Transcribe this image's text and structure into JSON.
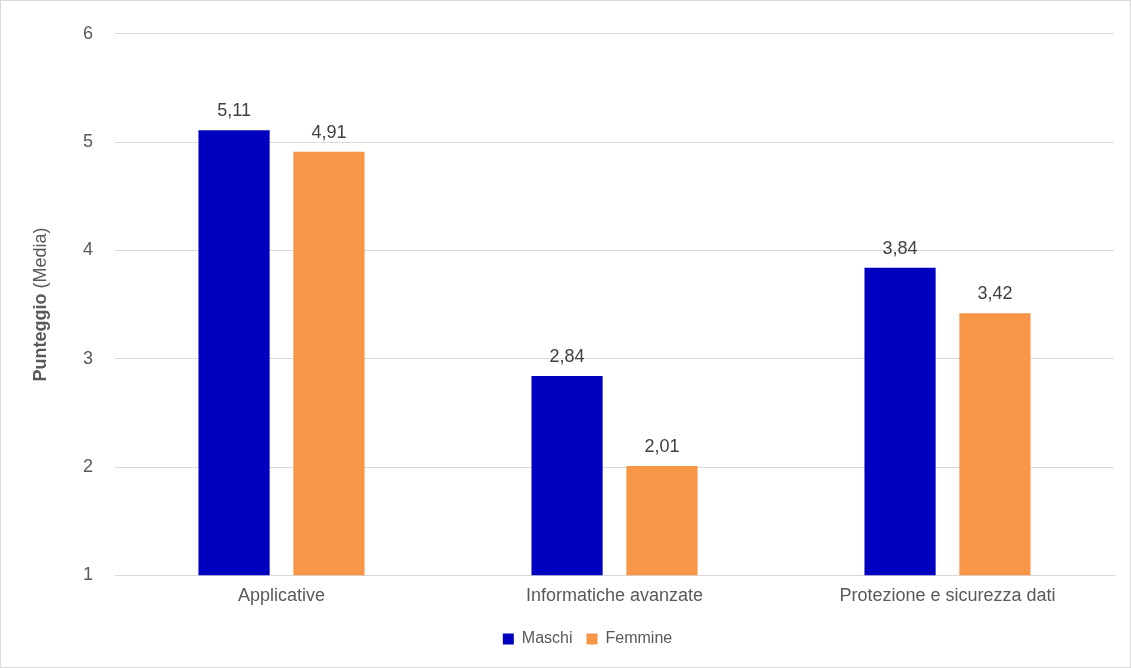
{
  "chart_data": {
    "type": "bar",
    "ylabel": "Punteggio (Media)",
    "categories": [
      "Applicative",
      "Informatiche avanzate",
      "Protezione e sicurezza dati"
    ],
    "series": [
      {
        "name": "Maschi",
        "color": "#0000c0",
        "values": [
          5.11,
          2.84,
          3.84
        ],
        "value_labels": [
          "5,11",
          "2,84",
          "3,84"
        ]
      },
      {
        "name": "Femmine",
        "color": "#f79646",
        "values": [
          4.91,
          2.01,
          3.42
        ],
        "value_labels": [
          "4,91",
          "2,01",
          "3,42"
        ]
      }
    ],
    "ylim": [
      1,
      6
    ],
    "yticks": [
      1,
      2,
      3,
      4,
      5,
      6
    ],
    "grid": "y",
    "legend": "bottom"
  }
}
